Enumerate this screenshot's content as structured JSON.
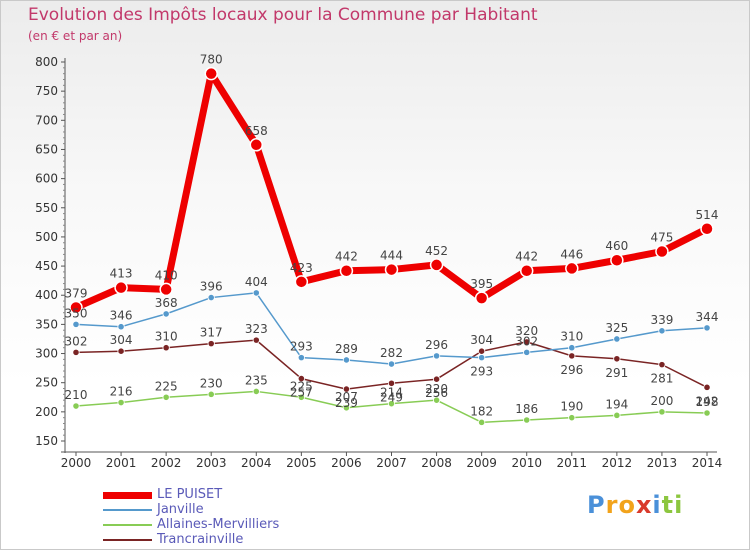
{
  "header": {
    "title": "Evolution des Impôts locaux pour la Commune par Habitant",
    "subtitle": "(en € et par an)"
  },
  "logo": {
    "letters": [
      "P",
      "r",
      "o",
      "x",
      "i",
      "t",
      "i"
    ],
    "colors": [
      "#4a90d9",
      "#f2a31b",
      "#f2a31b",
      "#d93a2b",
      "#4a90d9",
      "#8cc63f",
      "#8cc63f"
    ]
  },
  "chart_data": {
    "type": "line",
    "title": "Evolution des Impôts locaux pour la Commune par Habitant",
    "subtitle": "(en € et par an)",
    "xlabel": "",
    "ylabel": "",
    "x": [
      "2000",
      "2001",
      "2002",
      "2003",
      "2004",
      "2005",
      "2006",
      "2007",
      "2008",
      "2009",
      "2010",
      "2011",
      "2012",
      "2013",
      "2014"
    ],
    "ylim": [
      150,
      800
    ],
    "yticks": [
      150,
      200,
      250,
      300,
      350,
      400,
      450,
      500,
      550,
      600,
      650,
      700,
      750,
      800
    ],
    "grid": false,
    "legend_position": "bottom-left",
    "series": [
      {
        "name": "LE PUISET",
        "color": "#ee0000",
        "values": [
          379,
          413,
          410,
          780,
          658,
          423,
          442,
          444,
          452,
          395,
          442,
          446,
          460,
          475,
          514
        ]
      },
      {
        "name": "Janville",
        "color": "#5599cc",
        "values": [
          350,
          346,
          368,
          396,
          404,
          293,
          289,
          282,
          296,
          293,
          302,
          310,
          325,
          339,
          344
        ]
      },
      {
        "name": "Allaines-Mervilliers",
        "color": "#88cc55",
        "values": [
          210,
          216,
          225,
          230,
          235,
          225,
          207,
          214,
          220,
          182,
          186,
          190,
          194,
          200,
          198
        ]
      },
      {
        "name": "Trancrainville",
        "color": "#7a2424",
        "values": [
          302,
          304,
          310,
          317,
          323,
          257,
          239,
          249,
          256,
          304,
          320,
          296,
          291,
          281,
          242
        ]
      }
    ]
  }
}
